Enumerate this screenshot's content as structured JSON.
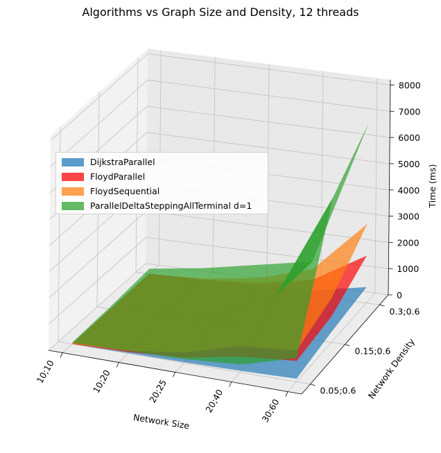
{
  "chart_data": {
    "type": "surface3d",
    "title": "Algorithms vs Graph Size and Density, 12 threads",
    "xlabel": "Network Size",
    "ylabel": "Network Density",
    "zlabel": "Time (ms)",
    "x_categories": [
      "10;10",
      "10;20",
      "20;25",
      "20;40",
      "30;60"
    ],
    "y_categories": [
      "0.05;0.6",
      "0.15;0.6",
      "0.3;0.6"
    ],
    "z_ticks": [
      0,
      1000,
      2000,
      3000,
      4000,
      5000,
      6000,
      7000,
      8000
    ],
    "zlim": [
      0,
      8200
    ],
    "legend_position": "upper-left",
    "series": [
      {
        "name": "DijkstraParallel",
        "color": "#1f77b4",
        "values": [
          [
            5,
            20,
            30,
            60,
            120
          ],
          [
            10,
            30,
            60,
            120,
            400
          ],
          [
            15,
            40,
            100,
            200,
            600
          ]
        ]
      },
      {
        "name": "FloydParallel",
        "color": "#ff0000",
        "values": [
          [
            5,
            60,
            200,
            600,
            800
          ],
          [
            5,
            60,
            200,
            600,
            1000
          ],
          [
            5,
            60,
            200,
            600,
            1800
          ]
        ]
      },
      {
        "name": "FloydSequential",
        "color": "#ff7f0e",
        "values": [
          [
            5,
            100,
            400,
            1000,
            1200
          ],
          [
            5,
            100,
            400,
            1000,
            1700
          ],
          [
            5,
            100,
            400,
            1000,
            3000
          ]
        ]
      },
      {
        "name": "ParallelDeltaSteppingAllTerminal d=1",
        "color": "#2ca02c",
        "values": [
          [
            50,
            100,
            150,
            300,
            900
          ],
          [
            100,
            200,
            400,
            1500,
            5500
          ],
          [
            200,
            500,
            900,
            1300,
            6800
          ]
        ]
      }
    ]
  }
}
